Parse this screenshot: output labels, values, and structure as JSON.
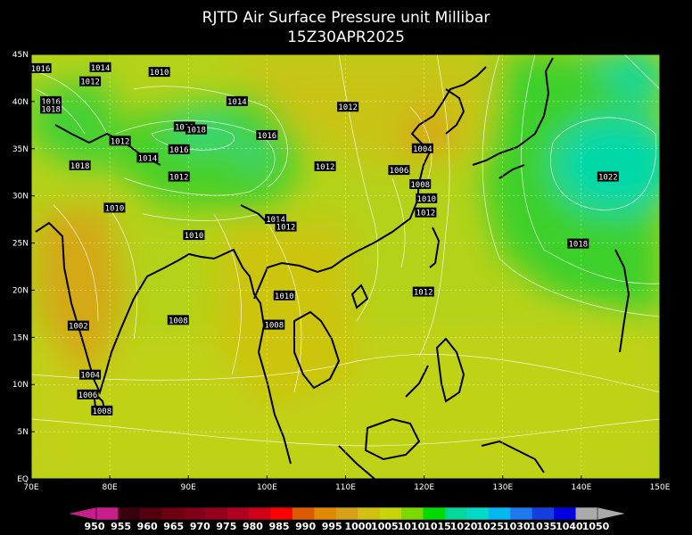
{
  "title": "RJTD Air Surface Pressure unit Millibar",
  "subtitle": "15Z30APR2025",
  "lat_ticks": [
    "45N",
    "40N",
    "35N",
    "30N",
    "25N",
    "20N",
    "15N",
    "10N",
    "5N",
    "EQ"
  ],
  "lon_ticks": [
    "70E",
    "80E",
    "90E",
    "100E",
    "110E",
    "120E",
    "130E",
    "140E",
    "150E"
  ],
  "map_data": {
    "type": "contour-map",
    "lon_range": [
      70,
      150
    ],
    "lat_range": [
      0,
      45
    ],
    "contour_labels": [
      {
        "text": "1016",
        "lon": 71.2,
        "lat": 43.5
      },
      {
        "text": "1014",
        "lon": 78.8,
        "lat": 43.6
      },
      {
        "text": "1010",
        "lon": 86.3,
        "lat": 43.1
      },
      {
        "text": "1012",
        "lon": 77.5,
        "lat": 42.1
      },
      {
        "text": "1016",
        "lon": 72.5,
        "lat": 40.0
      },
      {
        "text": "1018",
        "lon": 72.5,
        "lat": 39.2
      },
      {
        "text": "1014",
        "lon": 96.2,
        "lat": 40.0
      },
      {
        "text": "1012",
        "lon": 110.3,
        "lat": 39.4
      },
      {
        "text": "1010",
        "lon": 89.5,
        "lat": 37.3
      },
      {
        "text": "1018",
        "lon": 91.0,
        "lat": 37.0
      },
      {
        "text": "1012",
        "lon": 81.3,
        "lat": 35.8
      },
      {
        "text": "1016",
        "lon": 100.0,
        "lat": 36.4
      },
      {
        "text": "1016",
        "lon": 88.8,
        "lat": 34.9
      },
      {
        "text": "1014",
        "lon": 84.8,
        "lat": 34.0
      },
      {
        "text": "1004",
        "lon": 119.8,
        "lat": 35.0
      },
      {
        "text": "1018",
        "lon": 76.2,
        "lat": 33.2
      },
      {
        "text": "1012",
        "lon": 107.4,
        "lat": 33.1
      },
      {
        "text": "1006",
        "lon": 116.8,
        "lat": 32.7
      },
      {
        "text": "1022",
        "lon": 143.4,
        "lat": 32.0
      },
      {
        "text": "1012",
        "lon": 88.8,
        "lat": 32.0
      },
      {
        "text": "1008",
        "lon": 119.5,
        "lat": 31.2
      },
      {
        "text": "1010",
        "lon": 80.6,
        "lat": 28.7
      },
      {
        "text": "1010",
        "lon": 120.3,
        "lat": 29.7
      },
      {
        "text": "1012",
        "lon": 120.2,
        "lat": 28.2
      },
      {
        "text": "1014",
        "lon": 101.1,
        "lat": 27.5
      },
      {
        "text": "1012",
        "lon": 102.4,
        "lat": 26.7
      },
      {
        "text": "1010",
        "lon": 90.7,
        "lat": 25.8
      },
      {
        "text": "1018",
        "lon": 139.6,
        "lat": 24.9
      },
      {
        "text": "1012",
        "lon": 119.9,
        "lat": 19.8
      },
      {
        "text": "1010",
        "lon": 102.2,
        "lat": 19.4
      },
      {
        "text": "1008",
        "lon": 88.7,
        "lat": 16.8
      },
      {
        "text": "1002",
        "lon": 76.0,
        "lat": 16.2
      },
      {
        "text": "1008",
        "lon": 100.9,
        "lat": 16.3
      },
      {
        "text": "1004",
        "lon": 77.5,
        "lat": 11.0
      },
      {
        "text": "1006",
        "lon": 77.2,
        "lat": 8.9
      },
      {
        "text": "1008",
        "lon": 79.0,
        "lat": 7.2
      }
    ]
  },
  "colorbar": {
    "labels": [
      "950",
      "955",
      "960",
      "965",
      "970",
      "975",
      "980",
      "985",
      "990",
      "995",
      "1000",
      "1005",
      "1010",
      "1015",
      "1020",
      "1025",
      "1030",
      "1035",
      "1040",
      "1050"
    ],
    "colors": [
      "#c81e8c",
      "#3a0010",
      "#55000f",
      "#6e0010",
      "#800018",
      "#96001e",
      "#b00020",
      "#d00018",
      "#ff0000",
      "#dc5a00",
      "#e08a00",
      "#d6a018",
      "#d4c010",
      "#c8d40a",
      "#7ed800",
      "#00dc00",
      "#00d89a",
      "#00d8c8",
      "#00b8f0",
      "#1e78f0",
      "#1440e0",
      "#0000e0",
      "#aaaaaa"
    ],
    "under_color": "#c81e8c",
    "over_color": "#aaaaaa"
  }
}
